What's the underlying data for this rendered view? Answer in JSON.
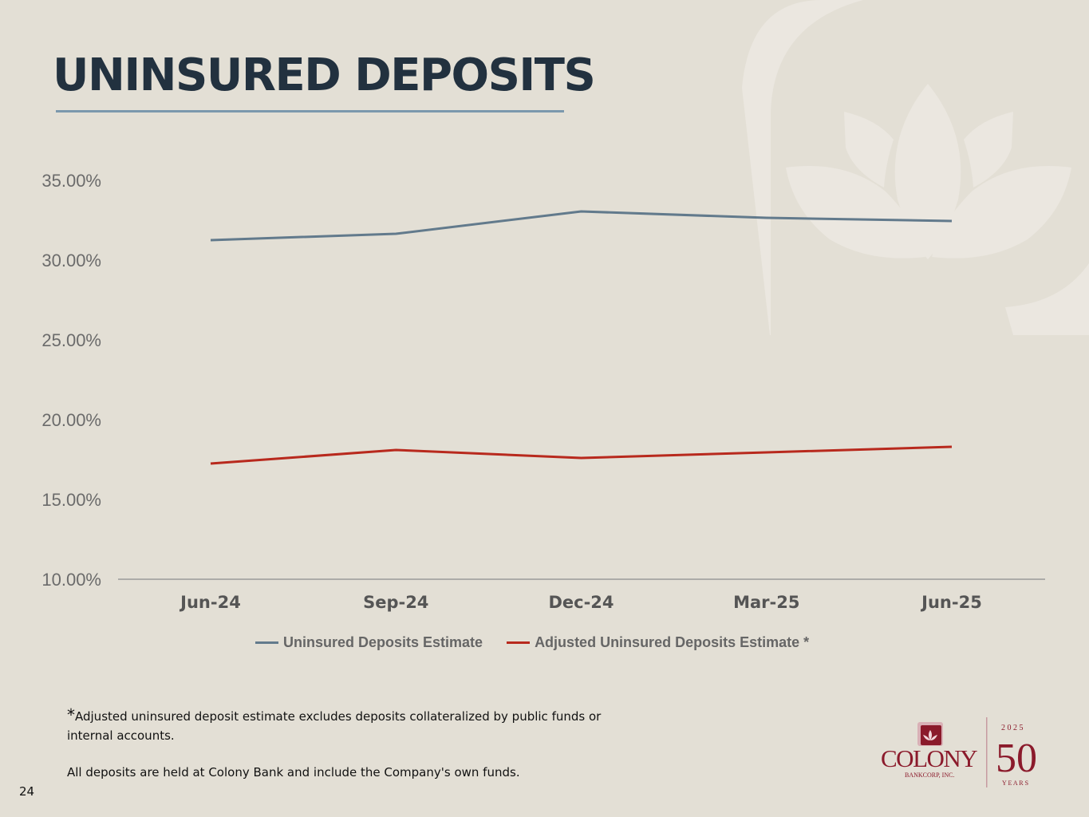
{
  "slide": {
    "title": "UNINSURED DEPOSITS",
    "footnote_star": "*",
    "footnote_text": "Adjusted uninsured deposit estimate excludes deposits collateralized by public funds or internal accounts.",
    "footnote_2": "All deposits are held at Colony Bank and include the Company's own funds.",
    "page_number": "24"
  },
  "logo": {
    "name": "COLONY",
    "sub": "BANKCORP, INC.",
    "year": "2 0 2 5",
    "anniversary": "50",
    "years_label": "Y E A R S",
    "brand_color": "#8b1a2b"
  },
  "chart_data": {
    "type": "line",
    "categories": [
      "Jun-24",
      "Sep-24",
      "Dec-24",
      "Mar-25",
      "Jun-25"
    ],
    "series": [
      {
        "name": "Uninsured Deposits Estimate",
        "values": [
          31.25,
          31.65,
          33.05,
          32.65,
          32.45
        ],
        "color": "#627a8c"
      },
      {
        "name": "Adjusted Uninsured Deposits Estimate *",
        "values": [
          17.25,
          18.1,
          17.6,
          17.95,
          18.3
        ],
        "color": "#b8291d"
      }
    ],
    "yticks": [
      "10.00%",
      "15.00%",
      "20.00%",
      "25.00%",
      "30.00%",
      "35.00%"
    ],
    "ylim": [
      10,
      35
    ],
    "ylabel": "",
    "xlabel": "",
    "grid": false,
    "legend_position": "bottom"
  }
}
